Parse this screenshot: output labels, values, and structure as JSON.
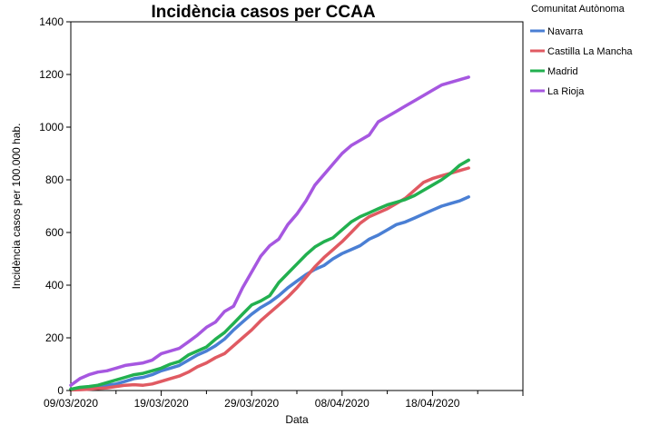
{
  "chart_data": {
    "type": "line",
    "title": "Incidència casos per CCAA",
    "xlabel": "Data",
    "ylabel": "Incidència casos per 100.000 hab.",
    "ylim": [
      0,
      1400
    ],
    "yticks": [
      0,
      200,
      400,
      600,
      800,
      1000,
      1200,
      1400
    ],
    "xlim": [
      "2020-03-09",
      "2020-04-28"
    ],
    "xticks": [
      "09/03/2020",
      "19/03/2020",
      "29/03/2020",
      "08/04/2020",
      "18/04/2020"
    ],
    "grid": false,
    "legend": {
      "title": "Comunitat Autònoma",
      "placement": "right"
    },
    "x": [
      "2020-03-09",
      "2020-03-10",
      "2020-03-11",
      "2020-03-12",
      "2020-03-13",
      "2020-03-14",
      "2020-03-15",
      "2020-03-16",
      "2020-03-17",
      "2020-03-18",
      "2020-03-19",
      "2020-03-20",
      "2020-03-21",
      "2020-03-22",
      "2020-03-23",
      "2020-03-24",
      "2020-03-25",
      "2020-03-26",
      "2020-03-27",
      "2020-03-28",
      "2020-03-29",
      "2020-03-30",
      "2020-03-31",
      "2020-04-01",
      "2020-04-02",
      "2020-04-03",
      "2020-04-04",
      "2020-04-05",
      "2020-04-06",
      "2020-04-07",
      "2020-04-08",
      "2020-04-09",
      "2020-04-10",
      "2020-04-11",
      "2020-04-12",
      "2020-04-13",
      "2020-04-14",
      "2020-04-15",
      "2020-04-16",
      "2020-04-17",
      "2020-04-18",
      "2020-04-19",
      "2020-04-20",
      "2020-04-21",
      "2020-04-22"
    ],
    "series": [
      {
        "name": "Navarra",
        "color": "#4a7fd4",
        "values": [
          5,
          8,
          12,
          15,
          20,
          25,
          35,
          45,
          50,
          60,
          75,
          85,
          95,
          115,
          135,
          150,
          170,
          195,
          230,
          260,
          290,
          315,
          335,
          360,
          390,
          415,
          440,
          460,
          475,
          500,
          520,
          535,
          550,
          575,
          590,
          610,
          630,
          640,
          655,
          670,
          685,
          700,
          710,
          720,
          735
        ]
      },
      {
        "name": "Castilla La Mancha",
        "color": "#e05a62",
        "values": [
          2,
          3,
          5,
          8,
          10,
          15,
          20,
          22,
          20,
          25,
          35,
          45,
          55,
          70,
          90,
          105,
          125,
          140,
          170,
          200,
          230,
          265,
          295,
          325,
          355,
          390,
          430,
          470,
          505,
          535,
          565,
          600,
          635,
          660,
          675,
          690,
          710,
          730,
          760,
          790,
          805,
          815,
          825,
          835,
          845
        ]
      },
      {
        "name": "Madrid",
        "color": "#22b04f",
        "values": [
          5,
          12,
          15,
          20,
          30,
          40,
          50,
          60,
          65,
          75,
          85,
          100,
          110,
          135,
          150,
          165,
          195,
          220,
          255,
          290,
          325,
          340,
          360,
          410,
          445,
          480,
          515,
          545,
          565,
          580,
          610,
          640,
          660,
          675,
          690,
          705,
          715,
          725,
          740,
          760,
          780,
          800,
          825,
          855,
          875
        ]
      },
      {
        "name": "La Rioja",
        "color": "#a657e0",
        "values": [
          20,
          45,
          60,
          70,
          75,
          85,
          95,
          100,
          105,
          115,
          140,
          150,
          160,
          185,
          210,
          240,
          260,
          300,
          320,
          390,
          450,
          510,
          550,
          575,
          630,
          670,
          720,
          780,
          820,
          860,
          900,
          930,
          950,
          970,
          1020,
          1040,
          1060,
          1080,
          1100,
          1120,
          1140,
          1160,
          1170,
          1180,
          1190
        ]
      }
    ]
  }
}
